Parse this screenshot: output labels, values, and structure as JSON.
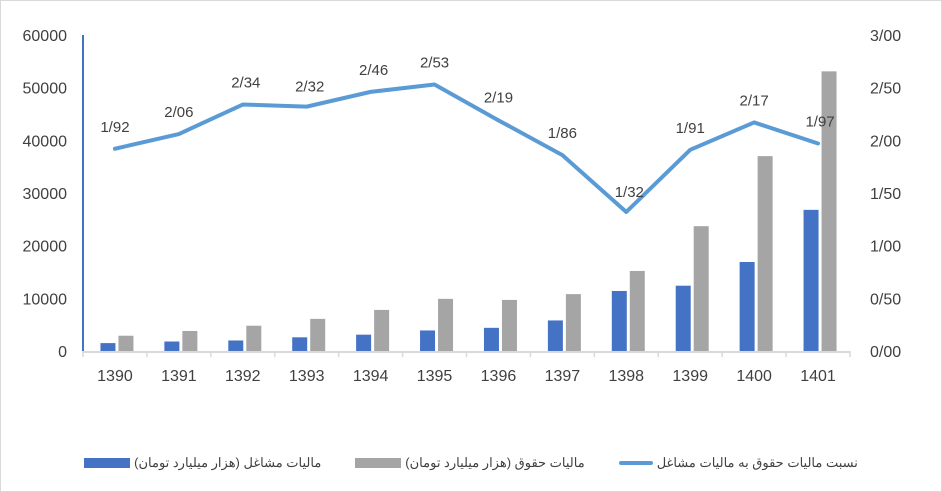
{
  "chart_data": {
    "type": "bar",
    "combo": "bar + line (secondary axis)",
    "categories": [
      "1390",
      "1391",
      "1392",
      "1393",
      "1394",
      "1395",
      "1396",
      "1397",
      "1398",
      "1399",
      "1400",
      "1401"
    ],
    "series": [
      {
        "name": "مالیات مشاغل (هزار میلیارد تومان)",
        "type": "bar",
        "axis": "primary",
        "color": "#4472C4",
        "values": [
          1500,
          1800,
          2000,
          2600,
          3100,
          3900,
          4400,
          5800,
          11400,
          12400,
          16900,
          26800
        ]
      },
      {
        "name": "مالیات حقوق (هزار میلیارد تومان)",
        "type": "bar",
        "axis": "primary",
        "color": "#A5A5A5",
        "values": [
          2900,
          3800,
          4800,
          6100,
          7800,
          9900,
          9700,
          10800,
          15200,
          23700,
          37000,
          53100
        ]
      },
      {
        "name": "نسبت مالیات حقوق به مالیات مشاغل",
        "type": "line",
        "axis": "secondary",
        "color": "#5B9BD5",
        "values": [
          1.92,
          2.06,
          2.34,
          2.32,
          2.46,
          2.53,
          2.19,
          1.86,
          1.32,
          1.91,
          2.17,
          1.97
        ],
        "labels": [
          "1/92",
          "2/06",
          "2/34",
          "2/32",
          "2/46",
          "2/53",
          "2/19",
          "1/86",
          "1/32",
          "1/91",
          "2/17",
          "1/97"
        ]
      }
    ],
    "title": "",
    "xlabel": "",
    "ylabel": "",
    "ylim": [
      0,
      60000
    ],
    "y2lim": [
      0,
      3
    ],
    "y_ticks": [
      "0",
      "10000",
      "20000",
      "30000",
      "40000",
      "50000",
      "60000"
    ],
    "y2_ticks": [
      "0/00",
      "0/50",
      "1/00",
      "1/50",
      "2/00",
      "2/50",
      "3/00"
    ],
    "grid": false,
    "legend_position": "bottom"
  },
  "legend": {
    "line_label": "نسبت مالیات حقوق به مالیات مشاغل",
    "gray_label": "مالیات حقوق (هزار میلیارد تومان)",
    "blue_label": "مالیات مشاغل (هزار میلیارد تومان)"
  },
  "colors": {
    "blue": "#4472C4",
    "gray": "#A5A5A5",
    "line": "#5B9BD5",
    "axis": "#d9d9d9",
    "text": "#404040"
  }
}
